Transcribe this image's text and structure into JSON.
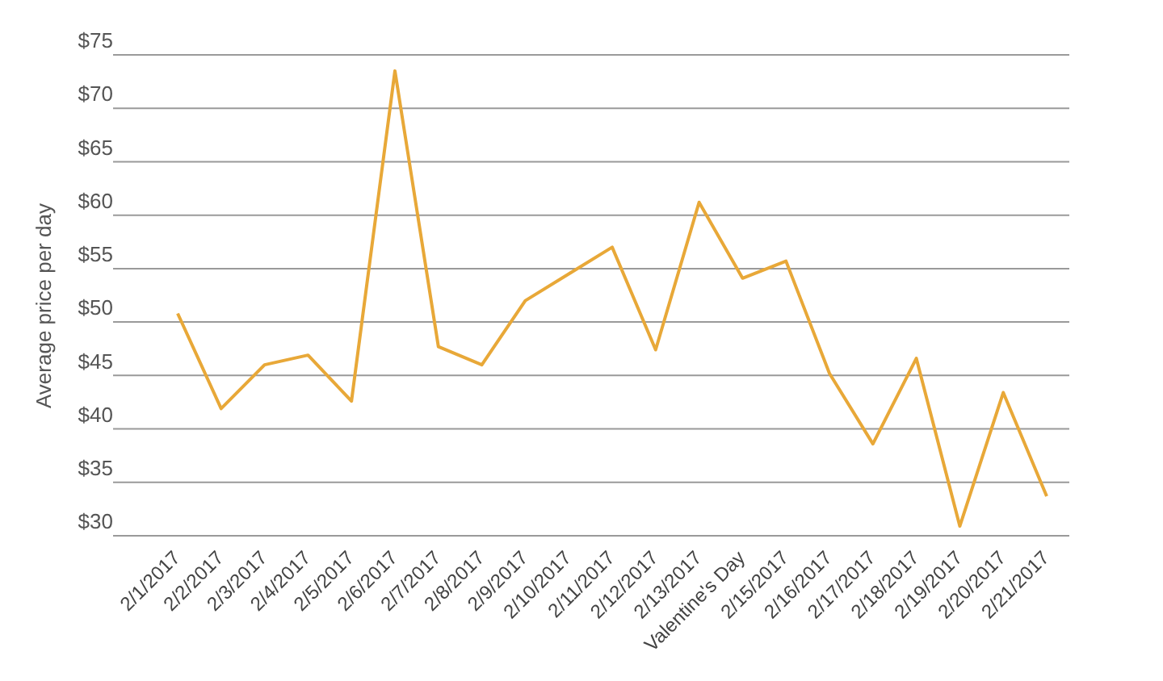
{
  "chart_data": {
    "type": "line",
    "ylabel": "Average price per day",
    "categories": [
      "2/1/2017",
      "2/2/2017",
      "2/3/2017",
      "2/4/2017",
      "2/5/2017",
      "2/6/2017",
      "2/7/2017",
      "2/8/2017",
      "2/9/2017",
      "2/10/2017",
      "2/11/2017",
      "2/12/2017",
      "2/13/2017",
      "Valentine's Day",
      "2/15/2017",
      "2/16/2017",
      "2/17/2017",
      "2/18/2017",
      "2/19/2017",
      "2/20/2017",
      "2/21/2017"
    ],
    "series": [
      {
        "color": "#e8a838",
        "values": [
          50.8,
          41.9,
          46.0,
          46.9,
          42.6,
          73.5,
          47.7,
          46.0,
          52.0,
          54.5,
          57.0,
          47.4,
          61.2,
          54.1,
          55.7,
          45.2,
          38.6,
          46.6,
          30.9,
          43.4,
          33.7
        ]
      }
    ],
    "ylim": [
      30,
      75
    ],
    "yticks": [
      {
        "value": 30,
        "label": "$30"
      },
      {
        "value": 35,
        "label": "$35"
      },
      {
        "value": 40,
        "label": "$40"
      },
      {
        "value": 45,
        "label": "$45"
      },
      {
        "value": 50,
        "label": "$50"
      },
      {
        "value": 55,
        "label": "$55"
      },
      {
        "value": 60,
        "label": "$60"
      },
      {
        "value": 65,
        "label": "$65"
      },
      {
        "value": 70,
        "label": "$70"
      },
      {
        "value": 75,
        "label": "$75"
      }
    ],
    "grid": "y",
    "legend": false,
    "marker": "none",
    "line_style": "solid"
  }
}
